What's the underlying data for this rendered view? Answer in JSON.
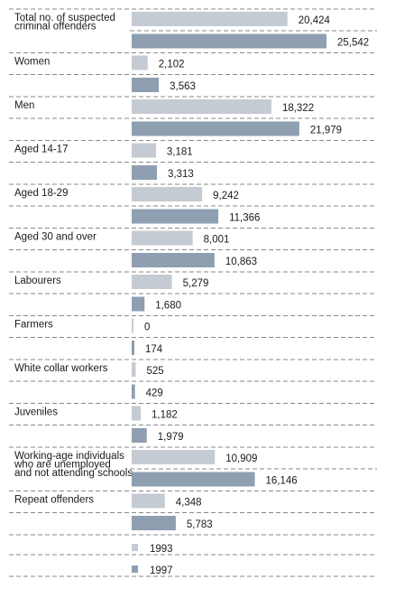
{
  "chart_data": {
    "type": "bar",
    "orientation": "horizontal",
    "grid": false,
    "legend_position": "bottom-left",
    "categories": [
      [
        "Total no. of suspected",
        "criminal offenders"
      ],
      [
        "Women"
      ],
      [
        "Men"
      ],
      [
        "Aged 14-17"
      ],
      [
        "Aged 18-29"
      ],
      [
        "Aged 30 and over"
      ],
      [
        "Labourers"
      ],
      [
        "Farmers"
      ],
      [
        "White collar workers"
      ],
      [
        "Juveniles"
      ],
      [
        "Working-age individuals",
        "who are unemployed",
        "and not attending schools"
      ],
      [
        "Repeat offenders"
      ]
    ],
    "series": [
      {
        "name": "1993",
        "color": "#c5cbd3",
        "values": [
          20424,
          2102,
          18322,
          3181,
          9242,
          8001,
          5279,
          0,
          525,
          1182,
          10909,
          4348
        ],
        "labels": [
          "20,424",
          "2,102",
          "18,322",
          "3,181",
          "9,242",
          "8,001",
          "5,279",
          "0",
          "525",
          "1,182",
          "10,909",
          "4,348"
        ]
      },
      {
        "name": "1997",
        "color": "#8d9fb0",
        "values": [
          25542,
          3563,
          21979,
          3313,
          11366,
          10863,
          1680,
          174,
          429,
          1979,
          16146,
          5783
        ],
        "labels": [
          "25,542",
          "3,563",
          "21,979",
          "3,313",
          "11,366",
          "10,863",
          "1,680",
          "174",
          "429",
          "1,979",
          "16,146",
          "5,783"
        ]
      }
    ],
    "xlim": [
      0,
      26000
    ]
  }
}
